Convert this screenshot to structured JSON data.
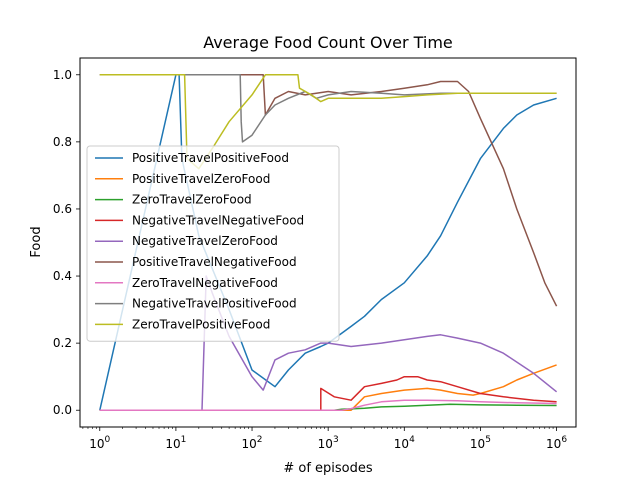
{
  "chart_data": {
    "type": "line",
    "title": "Average Food Count Over Time",
    "xlabel": "# of episodes",
    "ylabel": "Food",
    "xscale": "log",
    "xlim": [
      0.55,
      1800000
    ],
    "ylim": [
      -0.05,
      1.05
    ],
    "x_ticks": [
      {
        "value": 1,
        "base": "10",
        "exp": "0"
      },
      {
        "value": 10,
        "base": "10",
        "exp": "1"
      },
      {
        "value": 100,
        "base": "10",
        "exp": "2"
      },
      {
        "value": 1000,
        "base": "10",
        "exp": "3"
      },
      {
        "value": 10000,
        "base": "10",
        "exp": "4"
      },
      {
        "value": 100000,
        "base": "10",
        "exp": "5"
      },
      {
        "value": 1000000,
        "base": "10",
        "exp": "6"
      }
    ],
    "y_ticks": [
      {
        "value": 0.0,
        "label": "0.0"
      },
      {
        "value": 0.2,
        "label": "0.2"
      },
      {
        "value": 0.4,
        "label": "0.4"
      },
      {
        "value": 0.6,
        "label": "0.6"
      },
      {
        "value": 0.8,
        "label": "0.8"
      },
      {
        "value": 1.0,
        "label": "1.0"
      }
    ],
    "grid": false,
    "legend_position": "center-left",
    "series": [
      {
        "name": "PositiveTravelPositiveFood",
        "color": "#1f77b4",
        "points": [
          [
            1,
            0
          ],
          [
            10,
            1
          ],
          [
            11,
            1
          ],
          [
            12,
            0.75
          ],
          [
            20,
            0.52
          ],
          [
            50,
            0.3
          ],
          [
            100,
            0.12
          ],
          [
            200,
            0.07
          ],
          [
            300,
            0.12
          ],
          [
            500,
            0.17
          ],
          [
            800,
            0.19
          ],
          [
            1000,
            0.2
          ],
          [
            2000,
            0.25
          ],
          [
            3000,
            0.28
          ],
          [
            5000,
            0.33
          ],
          [
            10000,
            0.38
          ],
          [
            20000,
            0.46
          ],
          [
            30000,
            0.52
          ],
          [
            50000,
            0.62
          ],
          [
            100000,
            0.75
          ],
          [
            200000,
            0.84
          ],
          [
            300000,
            0.88
          ],
          [
            500000,
            0.91
          ],
          [
            1000000,
            0.93
          ]
        ]
      },
      {
        "name": "PositiveTravelZeroFood",
        "color": "#ff7f0e",
        "points": [
          [
            1,
            0
          ],
          [
            2000,
            0
          ],
          [
            3000,
            0.04
          ],
          [
            5000,
            0.05
          ],
          [
            10000,
            0.06
          ],
          [
            20000,
            0.065
          ],
          [
            30000,
            0.06
          ],
          [
            50000,
            0.05
          ],
          [
            80000,
            0.045
          ],
          [
            100000,
            0.05
          ],
          [
            200000,
            0.07
          ],
          [
            300000,
            0.09
          ],
          [
            500000,
            0.11
          ],
          [
            1000000,
            0.135
          ]
        ]
      },
      {
        "name": "ZeroTravelZeroFood",
        "color": "#2ca02c",
        "points": [
          [
            1,
            0
          ],
          [
            1200,
            0
          ],
          [
            1500,
            0.003
          ],
          [
            2000,
            0.004
          ],
          [
            3000,
            0.006
          ],
          [
            5000,
            0.01
          ],
          [
            10000,
            0.012
          ],
          [
            20000,
            0.015
          ],
          [
            40000,
            0.018
          ],
          [
            100000,
            0.016
          ],
          [
            300000,
            0.015
          ],
          [
            1000000,
            0.014
          ]
        ]
      },
      {
        "name": "NegativeTravelNegativeFood",
        "color": "#d62728",
        "points": [
          [
            1,
            0
          ],
          [
            800,
            0
          ],
          [
            801,
            0.065
          ],
          [
            1200,
            0.04
          ],
          [
            2000,
            0.03
          ],
          [
            3000,
            0.07
          ],
          [
            5000,
            0.08
          ],
          [
            8000,
            0.09
          ],
          [
            10000,
            0.1
          ],
          [
            15000,
            0.1
          ],
          [
            20000,
            0.09
          ],
          [
            30000,
            0.085
          ],
          [
            50000,
            0.07
          ],
          [
            100000,
            0.05
          ],
          [
            200000,
            0.04
          ],
          [
            500000,
            0.03
          ],
          [
            1000000,
            0.025
          ]
        ]
      },
      {
        "name": "NegativeTravelZeroFood",
        "color": "#9467bd",
        "points": [
          [
            1,
            0
          ],
          [
            22,
            0
          ],
          [
            25,
            0.4
          ],
          [
            30,
            0.35
          ],
          [
            50,
            0.22
          ],
          [
            100,
            0.1
          ],
          [
            140,
            0.06
          ],
          [
            200,
            0.15
          ],
          [
            300,
            0.17
          ],
          [
            500,
            0.18
          ],
          [
            800,
            0.2
          ],
          [
            1000,
            0.2
          ],
          [
            2000,
            0.19
          ],
          [
            5000,
            0.2
          ],
          [
            10000,
            0.21
          ],
          [
            20000,
            0.22
          ],
          [
            30000,
            0.225
          ],
          [
            50000,
            0.215
          ],
          [
            100000,
            0.2
          ],
          [
            200000,
            0.17
          ],
          [
            500000,
            0.11
          ],
          [
            1000000,
            0.055
          ]
        ]
      },
      {
        "name": "PositiveTravelNegativeFood",
        "color": "#8c564b",
        "points": [
          [
            1,
            1
          ],
          [
            140,
            1
          ],
          [
            150,
            0.88
          ],
          [
            200,
            0.93
          ],
          [
            300,
            0.95
          ],
          [
            500,
            0.94
          ],
          [
            1000,
            0.95
          ],
          [
            2000,
            0.94
          ],
          [
            5000,
            0.95
          ],
          [
            10000,
            0.96
          ],
          [
            20000,
            0.97
          ],
          [
            30000,
            0.98
          ],
          [
            50000,
            0.98
          ],
          [
            70000,
            0.95
          ],
          [
            100000,
            0.87
          ],
          [
            200000,
            0.72
          ],
          [
            300000,
            0.6
          ],
          [
            500000,
            0.47
          ],
          [
            700000,
            0.38
          ],
          [
            1000000,
            0.31
          ]
        ]
      },
      {
        "name": "ZeroTravelNegativeFood",
        "color": "#e377c2",
        "points": [
          [
            1,
            0
          ],
          [
            1500,
            0
          ],
          [
            2000,
            0.005
          ],
          [
            3000,
            0.015
          ],
          [
            5000,
            0.025
          ],
          [
            10000,
            0.03
          ],
          [
            20000,
            0.03
          ],
          [
            50000,
            0.028
          ],
          [
            100000,
            0.025
          ],
          [
            300000,
            0.022
          ],
          [
            1000000,
            0.02
          ]
        ]
      },
      {
        "name": "NegativeTravelPositiveFood",
        "color": "#7f7f7f",
        "points": [
          [
            1,
            1
          ],
          [
            70,
            1
          ],
          [
            72,
            0.86
          ],
          [
            75,
            0.8
          ],
          [
            100,
            0.82
          ],
          [
            150,
            0.88
          ],
          [
            200,
            0.91
          ],
          [
            300,
            0.93
          ],
          [
            500,
            0.95
          ],
          [
            700,
            0.93
          ],
          [
            1000,
            0.94
          ],
          [
            2000,
            0.95
          ],
          [
            5000,
            0.945
          ],
          [
            10000,
            0.94
          ],
          [
            30000,
            0.945
          ],
          [
            100000,
            0.945
          ],
          [
            1000000,
            0.945
          ]
        ]
      },
      {
        "name": "ZeroTravelPositiveFood",
        "color": "#bcbd22",
        "points": [
          [
            1,
            1
          ],
          [
            13,
            1
          ],
          [
            14,
            0.75
          ],
          [
            20,
            0.72
          ],
          [
            30,
            0.78
          ],
          [
            50,
            0.86
          ],
          [
            100,
            0.94
          ],
          [
            150,
            1
          ],
          [
            400,
            1
          ],
          [
            420,
            0.96
          ],
          [
            600,
            0.94
          ],
          [
            800,
            0.92
          ],
          [
            1000,
            0.93
          ],
          [
            2000,
            0.93
          ],
          [
            5000,
            0.93
          ],
          [
            10000,
            0.935
          ],
          [
            20000,
            0.94
          ],
          [
            50000,
            0.945
          ],
          [
            100000,
            0.945
          ],
          [
            1000000,
            0.945
          ]
        ]
      }
    ]
  }
}
